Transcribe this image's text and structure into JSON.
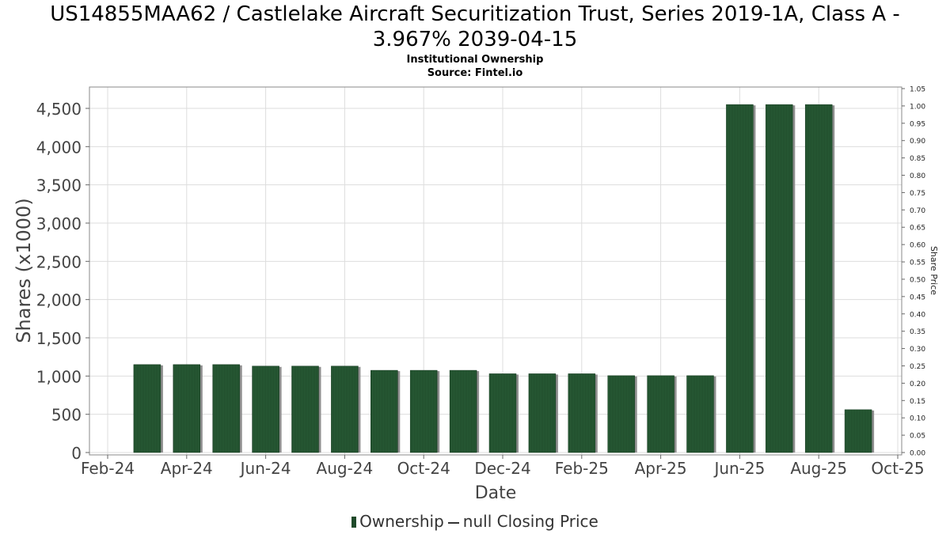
{
  "chart_data": {
    "type": "bar",
    "title": "US14855MAA62 / Castlelake Aircraft Securitization Trust, Series 2019-1A, Class A - 3.967% 2039-04-15",
    "title_line1": "US14855MAA62 / Castlelake Aircraft Securitization Trust, Series 2019-1A, Class A -",
    "title_line2": "3.967% 2039-04-15",
    "subtitle": "Institutional Ownership",
    "source": "Source: Fintel.io",
    "xlabel": "Date",
    "ylabel": "Shares (x1000)",
    "y2label": "Share Price",
    "ylim": [
      0,
      4800
    ],
    "y2lim": [
      0,
      1.05
    ],
    "x_ticks": [
      "Feb-24",
      "Apr-24",
      "Jun-24",
      "Aug-24",
      "Oct-24",
      "Dec-24",
      "Feb-25",
      "Apr-25",
      "Jun-25",
      "Aug-25",
      "Oct-25"
    ],
    "y_ticks": [
      "0",
      "500",
      "1,000",
      "1,500",
      "2,000",
      "2,500",
      "3,000",
      "3,500",
      "4,000",
      "4,500"
    ],
    "y2_ticks": [
      "0.00",
      "0.05",
      "0.10",
      "0.15",
      "0.20",
      "0.25",
      "0.30",
      "0.35",
      "0.40",
      "0.45",
      "0.50",
      "0.55",
      "0.60",
      "0.65",
      "0.70",
      "0.75",
      "0.80",
      "0.85",
      "0.90",
      "0.95",
      "1.00",
      "1.05"
    ],
    "x": [
      "2024-03",
      "2024-04",
      "2024-05",
      "2024-06",
      "2024-07",
      "2024-08",
      "2024-09",
      "2024-10",
      "2024-11",
      "2024-12",
      "2025-01",
      "2025-02",
      "2025-03",
      "2025-04",
      "2025-05",
      "2025-06",
      "2025-07",
      "2025-08",
      "2025-09"
    ],
    "series": [
      {
        "name": "Ownership",
        "values": [
          1150,
          1150,
          1150,
          1130,
          1130,
          1130,
          1075,
          1075,
          1075,
          1030,
          1030,
          1030,
          1005,
          1005,
          1005,
          4550,
          4550,
          4550,
          560
        ]
      }
    ],
    "grid": true,
    "legend_position": "bottom",
    "legend": {
      "ownership_label": "Ownership",
      "price_label": "null Closing Price"
    },
    "colors": {
      "bar": "#1e4a2a",
      "bar_shadow": "#8f8f8f",
      "grid": "#dddddd"
    }
  }
}
